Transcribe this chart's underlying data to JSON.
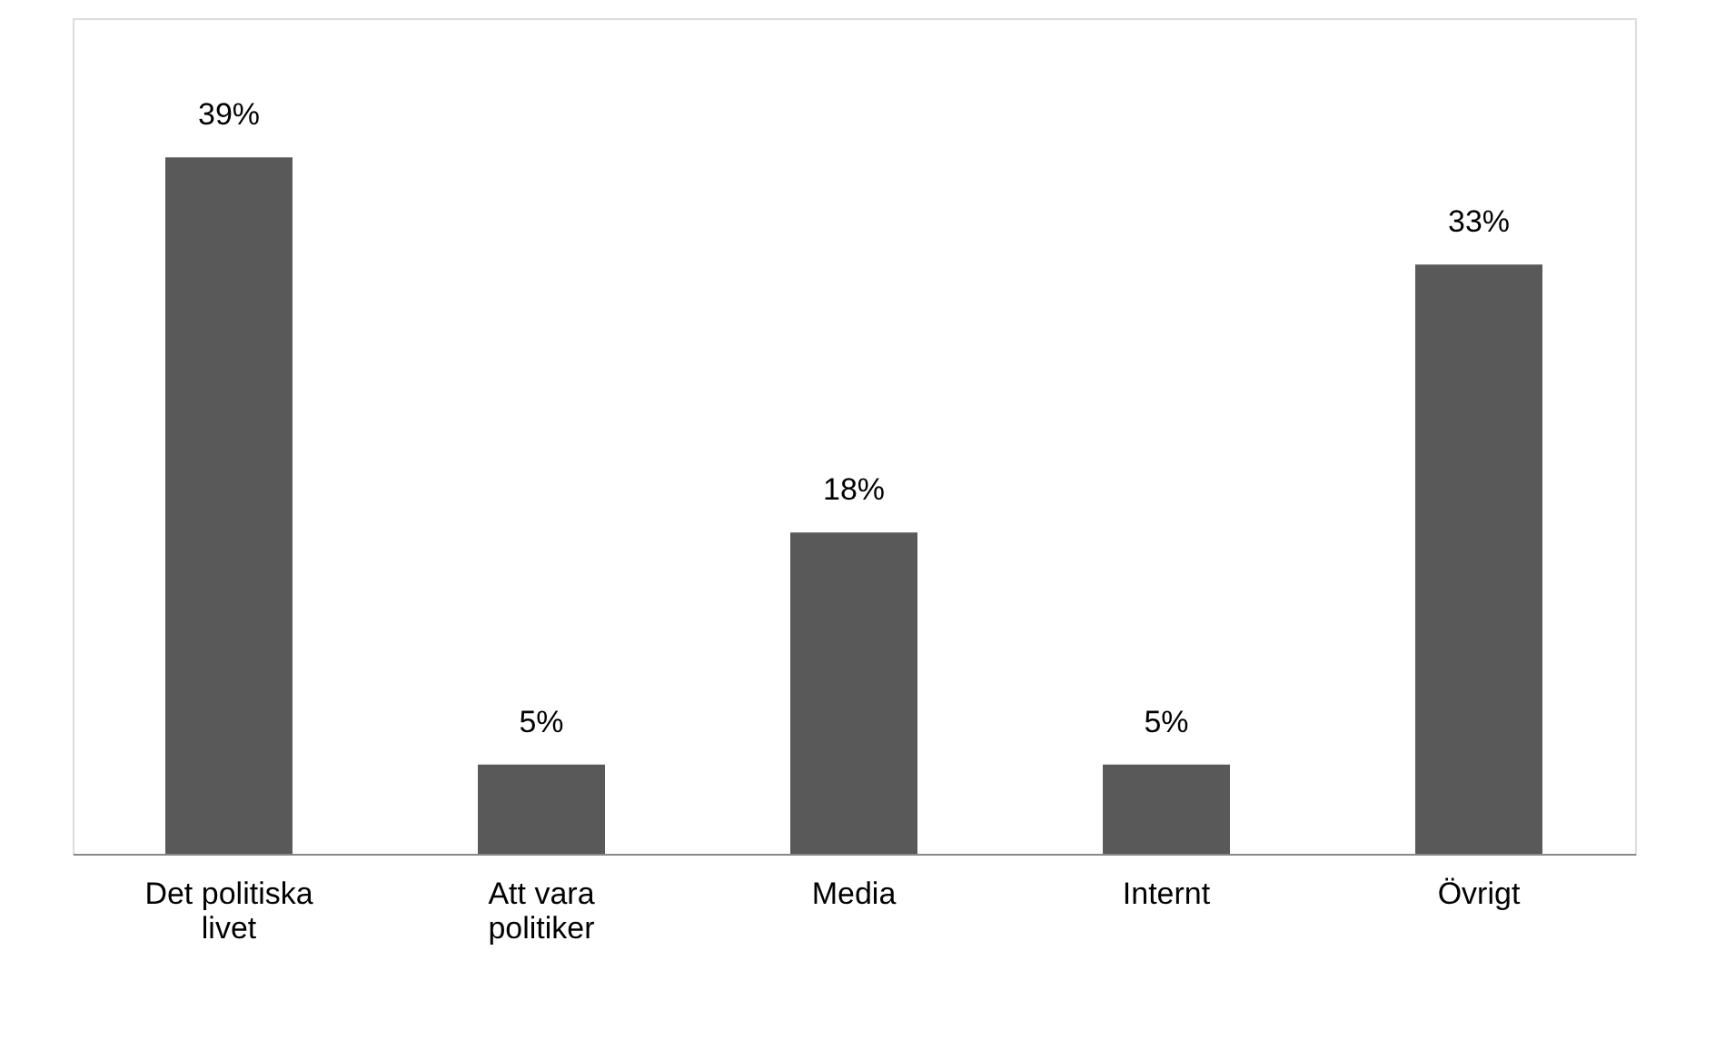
{
  "chart_data": {
    "type": "bar",
    "categories": [
      "Det politiska livet",
      "Att vara politiker",
      "Media",
      "Internt",
      "Övrigt"
    ],
    "values": [
      39,
      5,
      18,
      5,
      33
    ],
    "color": "#595959",
    "data_labels": true,
    "value_labels": [
      "39%",
      "5%",
      "18%",
      "5%",
      "33%"
    ],
    "tick_labels": "x",
    "grid": false
  }
}
